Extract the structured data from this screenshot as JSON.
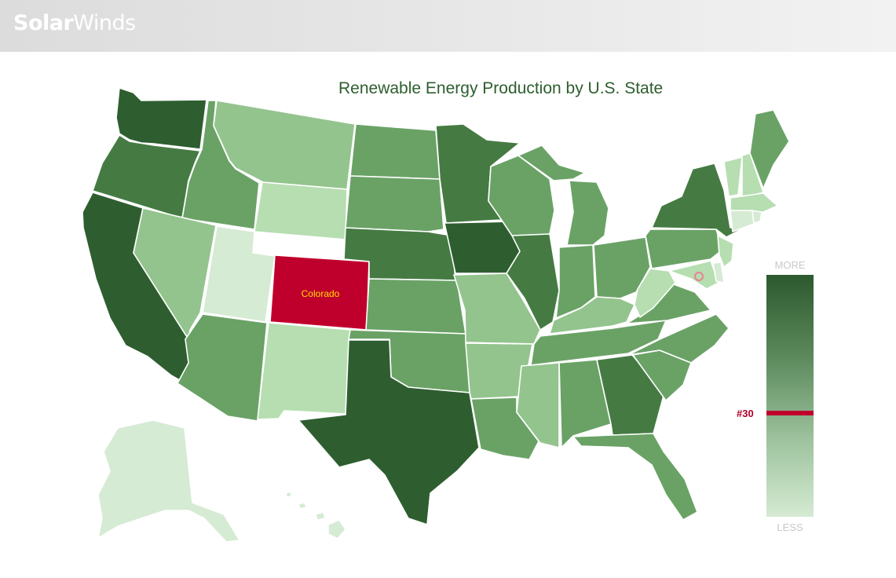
{
  "header": {
    "brand_part1": "Solar",
    "brand_part2": "Winds"
  },
  "map": {
    "title": "Renewable Energy Production by U.S. State",
    "highlight": {
      "state": "Colorado",
      "rank": "#30",
      "color": "#c0002c",
      "label_color": "#ffdc00"
    },
    "legend": {
      "more_label": "MORE",
      "less_label": "LESS",
      "dark_color": "#2c5a2e",
      "light_color": "#d5ebd3"
    },
    "shade_scale": {
      "1": "#2e5e30",
      "2": "#457b43",
      "3": "#6aa266",
      "4": "#93c48d",
      "5": "#b6deb1",
      "6": "#d5ebd3"
    },
    "states": [
      {
        "name": "Washington",
        "shade": 1
      },
      {
        "name": "Oregon",
        "shade": 2
      },
      {
        "name": "California",
        "shade": 1
      },
      {
        "name": "Idaho",
        "shade": 3
      },
      {
        "name": "Nevada",
        "shade": 4
      },
      {
        "name": "Montana",
        "shade": 4
      },
      {
        "name": "Wyoming",
        "shade": 5
      },
      {
        "name": "Utah",
        "shade": 6
      },
      {
        "name": "Colorado",
        "shade": 0
      },
      {
        "name": "Arizona",
        "shade": 3
      },
      {
        "name": "New Mexico",
        "shade": 5
      },
      {
        "name": "North Dakota",
        "shade": 3
      },
      {
        "name": "South Dakota",
        "shade": 3
      },
      {
        "name": "Nebraska",
        "shade": 2
      },
      {
        "name": "Kansas",
        "shade": 3
      },
      {
        "name": "Oklahoma",
        "shade": 3
      },
      {
        "name": "Texas",
        "shade": 1
      },
      {
        "name": "Minnesota",
        "shade": 2
      },
      {
        "name": "Iowa",
        "shade": 1
      },
      {
        "name": "Missouri",
        "shade": 4
      },
      {
        "name": "Arkansas",
        "shade": 4
      },
      {
        "name": "Louisiana",
        "shade": 3
      },
      {
        "name": "Wisconsin",
        "shade": 3
      },
      {
        "name": "Illinois",
        "shade": 2
      },
      {
        "name": "Michigan",
        "shade": 3
      },
      {
        "name": "Indiana",
        "shade": 3
      },
      {
        "name": "Ohio",
        "shade": 3
      },
      {
        "name": "Kentucky",
        "shade": 4
      },
      {
        "name": "Tennessee",
        "shade": 3
      },
      {
        "name": "Mississippi",
        "shade": 4
      },
      {
        "name": "Alabama",
        "shade": 3
      },
      {
        "name": "Georgia",
        "shade": 2
      },
      {
        "name": "Florida",
        "shade": 3
      },
      {
        "name": "South Carolina",
        "shade": 3
      },
      {
        "name": "North Carolina",
        "shade": 3
      },
      {
        "name": "Virginia",
        "shade": 3
      },
      {
        "name": "West Virginia",
        "shade": 5
      },
      {
        "name": "Pennsylvania",
        "shade": 3
      },
      {
        "name": "New York",
        "shade": 2
      },
      {
        "name": "Maryland",
        "shade": 5
      },
      {
        "name": "Delaware",
        "shade": 6
      },
      {
        "name": "New Jersey",
        "shade": 5
      },
      {
        "name": "Vermont",
        "shade": 5
      },
      {
        "name": "New Hampshire",
        "shade": 5
      },
      {
        "name": "Maine",
        "shade": 3
      },
      {
        "name": "Massachusetts",
        "shade": 5
      },
      {
        "name": "Connecticut",
        "shade": 6
      },
      {
        "name": "Rhode Island",
        "shade": 6
      },
      {
        "name": "Alaska",
        "shade": 6
      },
      {
        "name": "Hawaii",
        "shade": 6
      }
    ]
  }
}
